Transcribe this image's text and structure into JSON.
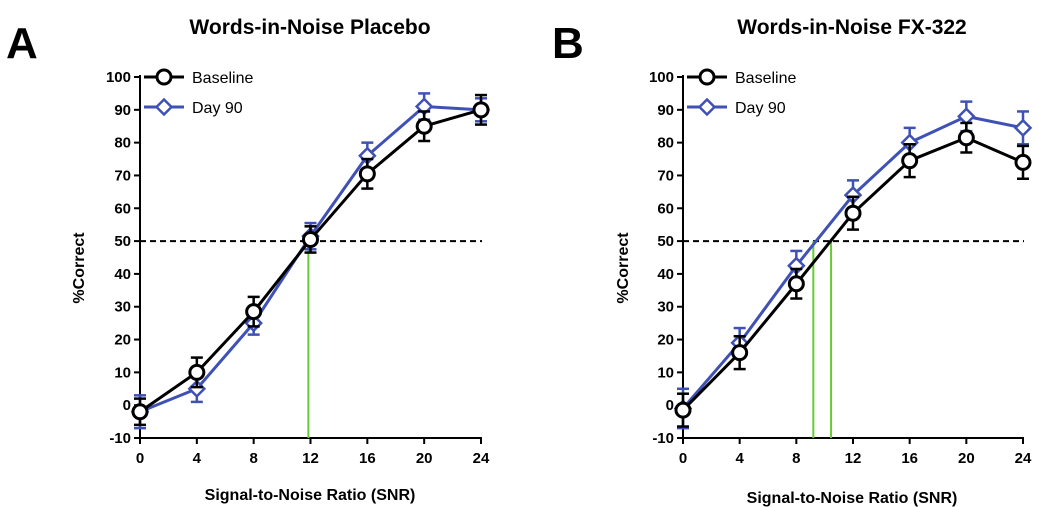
{
  "chart_data": [
    {
      "type": "line",
      "panel_label": "A",
      "title": "Words-in-Noise Placebo",
      "xlabel": "Signal-to-Noise Ratio (SNR)",
      "ylabel": "%Correct",
      "xlim": [
        0,
        24
      ],
      "ylim": [
        -10,
        100
      ],
      "x_ticks": [
        "0",
        "4",
        "8",
        "12",
        "16",
        "20",
        "24"
      ],
      "y_ticks": [
        "-10",
        "0",
        "10",
        "20",
        "30",
        "40",
        "50",
        "60",
        "70",
        "80",
        "90",
        "100"
      ],
      "x": [
        0,
        4,
        8,
        12,
        16,
        20,
        24
      ],
      "series": [
        {
          "name": "Baseline",
          "color": "#000000",
          "marker": "circle",
          "values": [
            -2,
            10,
            28.5,
            50.5,
            70.5,
            85,
            90
          ],
          "errors": [
            4,
            4.5,
            4.5,
            4,
            4.5,
            4.5,
            4.5
          ]
        },
        {
          "name": "Day 90",
          "color": "#3f51b5",
          "marker": "diamond",
          "values": [
            -2,
            5,
            25,
            51.5,
            76,
            91,
            90
          ],
          "errors": [
            5,
            4,
            3.5,
            4,
            4,
            4,
            3.5
          ]
        }
      ],
      "reference_line": {
        "y": 50,
        "style": "dashed",
        "color": "#000000"
      },
      "threshold_lines": [
        {
          "x": 11.85,
          "color": "#66cc33"
        }
      ],
      "legend": {
        "position": "top-left"
      }
    },
    {
      "type": "line",
      "panel_label": "B",
      "title": "Words-in-Noise FX-322",
      "xlabel": "Signal-to-Noise Ratio (SNR)",
      "ylabel": "%Correct",
      "xlim": [
        0,
        24
      ],
      "ylim": [
        -10,
        100
      ],
      "x_ticks": [
        "0",
        "4",
        "8",
        "12",
        "16",
        "20",
        "24"
      ],
      "y_ticks": [
        "-10",
        "0",
        "10",
        "20",
        "30",
        "40",
        "50",
        "60",
        "70",
        "80",
        "90",
        "100"
      ],
      "x": [
        0,
        4,
        8,
        12,
        16,
        20,
        24
      ],
      "series": [
        {
          "name": "Baseline",
          "color": "#000000",
          "marker": "circle",
          "values": [
            -1.5,
            16,
            37,
            58.5,
            74.5,
            81.5,
            74
          ],
          "errors": [
            5,
            5,
            4.5,
            5,
            5,
            4.5,
            5
          ]
        },
        {
          "name": "Day 90",
          "color": "#3f51b5",
          "marker": "diamond",
          "values": [
            -1,
            19,
            42.5,
            64,
            80,
            88,
            84.5
          ],
          "errors": [
            6,
            4.5,
            4.5,
            4.5,
            4.5,
            4.5,
            5
          ]
        }
      ],
      "reference_line": {
        "y": 50,
        "style": "dashed",
        "color": "#000000"
      },
      "threshold_lines": [
        {
          "x": 9.2,
          "color": "#66cc33"
        },
        {
          "x": 10.45,
          "color": "#66cc33"
        }
      ],
      "legend": {
        "position": "top-left"
      }
    }
  ]
}
